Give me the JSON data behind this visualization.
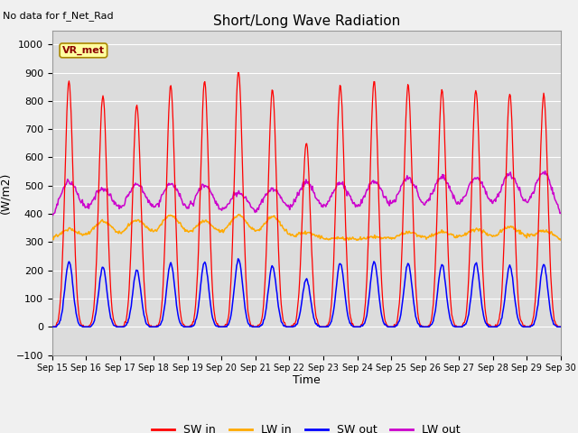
{
  "title": "Short/Long Wave Radiation",
  "no_data_label": "No data for f_Net_Rad",
  "station_label": "VR_met",
  "ylabel": "(W/m2)",
  "xlabel": "Time",
  "ylim": [
    -100,
    1050
  ],
  "yticks": [
    -100,
    0,
    100,
    200,
    300,
    400,
    500,
    600,
    700,
    800,
    900,
    1000
  ],
  "colors": {
    "SW_in": "#ff0000",
    "LW_in": "#ffaa00",
    "SW_out": "#0000ff",
    "LW_out": "#cc00cc"
  },
  "legend_labels": [
    "SW in",
    "LW in",
    "SW out",
    "LW out"
  ],
  "plot_bg": "#dcdcdc",
  "fig_bg": "#f0f0f0"
}
